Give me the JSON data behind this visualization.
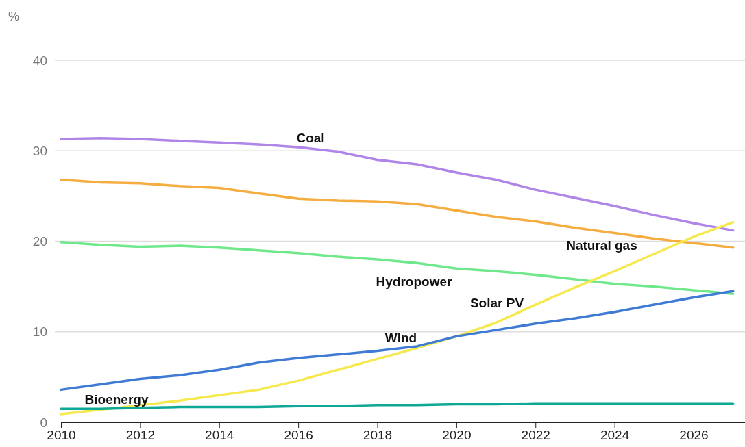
{
  "chart_data": {
    "type": "line",
    "ylabel": "%",
    "x": [
      2010,
      2011,
      2012,
      2013,
      2014,
      2015,
      2016,
      2017,
      2018,
      2019,
      2020,
      2021,
      2022,
      2023,
      2024,
      2025,
      2026,
      2027
    ],
    "series": [
      {
        "name": "Coal",
        "color": "#b085e8",
        "values": [
          31.3,
          31.4,
          31.3,
          31.1,
          30.9,
          30.7,
          30.4,
          29.9,
          29.0,
          28.5,
          27.6,
          26.8,
          25.7,
          24.8,
          23.9,
          22.9,
          22.0,
          21.2
        ]
      },
      {
        "name": "Natural gas",
        "color": "#f5ad42",
        "values": [
          26.8,
          26.5,
          26.4,
          26.1,
          25.9,
          25.3,
          24.7,
          24.5,
          24.4,
          24.1,
          23.4,
          22.7,
          22.2,
          21.5,
          20.9,
          20.3,
          19.8,
          19.3
        ]
      },
      {
        "name": "Hydropower",
        "color": "#6ee88a",
        "values": [
          19.9,
          19.6,
          19.4,
          19.5,
          19.3,
          19.0,
          18.7,
          18.3,
          18.0,
          17.6,
          17.0,
          16.7,
          16.3,
          15.8,
          15.3,
          15.0,
          14.6,
          14.2
        ]
      },
      {
        "name": "Solar PV",
        "color": "#f5e94f",
        "values": [
          0.9,
          1.4,
          1.9,
          2.4,
          3.0,
          3.6,
          4.6,
          5.8,
          7.0,
          8.2,
          9.5,
          11.0,
          13.0,
          14.9,
          16.7,
          18.6,
          20.5,
          22.1
        ]
      },
      {
        "name": "Wind",
        "color": "#3f7bd4",
        "values": [
          3.6,
          4.2,
          4.8,
          5.2,
          5.8,
          6.6,
          7.1,
          7.5,
          7.9,
          8.4,
          9.5,
          10.2,
          10.9,
          11.5,
          12.2,
          13.0,
          13.8,
          14.5
        ]
      },
      {
        "name": "Bioenergy",
        "color": "#0fa896",
        "values": [
          1.5,
          1.5,
          1.6,
          1.7,
          1.7,
          1.7,
          1.8,
          1.8,
          1.9,
          1.9,
          2.0,
          2.0,
          2.1,
          2.1,
          2.1,
          2.1,
          2.1,
          2.1
        ]
      }
    ],
    "xlim": [
      2010,
      2027.3
    ],
    "xticks": [
      2010,
      2012,
      2014,
      2016,
      2018,
      2020,
      2022,
      2024,
      2026
    ],
    "ylim": [
      0,
      40
    ],
    "yticks": [
      0,
      10,
      20,
      30,
      40
    ],
    "grid": "y",
    "legend": false,
    "marker": "none",
    "line_style": "solid"
  }
}
